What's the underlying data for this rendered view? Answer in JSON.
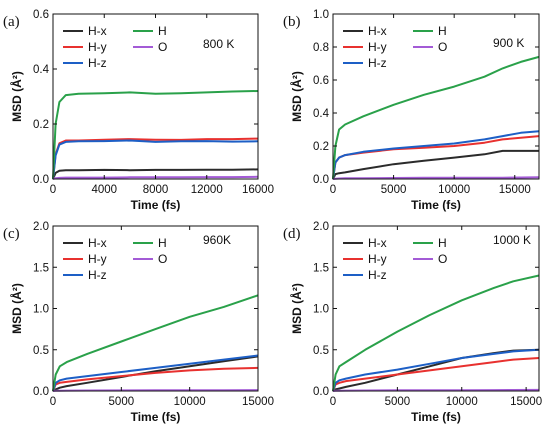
{
  "figure": {
    "panels": [
      "(a)",
      "(b)",
      "(c)",
      "(d)"
    ]
  },
  "chart_data": [
    {
      "type": "line",
      "panel_label": "(a)",
      "temperature_label": "800 K",
      "xlabel": "Time (fs)",
      "ylabel": "MSD (Å²)",
      "xlim": [
        0,
        16000
      ],
      "ylim": [
        0,
        0.6
      ],
      "xticks": [
        0,
        4000,
        8000,
        12000,
        16000
      ],
      "yticks": [
        0.0,
        0.2,
        0.4,
        0.6
      ],
      "ytick_labels": [
        "0.0",
        "0.2",
        "0.4",
        "0.6"
      ],
      "legend_position": "top-left",
      "x": [
        0,
        200,
        500,
        1000,
        2000,
        4000,
        6000,
        8000,
        10000,
        12000,
        14000,
        16000
      ],
      "series": [
        {
          "name": "H-x",
          "color": "#2b2b2b",
          "values": [
            0.0,
            0.022,
            0.03,
            0.032,
            0.032,
            0.033,
            0.032,
            0.033,
            0.033,
            0.034,
            0.034,
            0.035
          ]
        },
        {
          "name": "H-y",
          "color": "#e8312f",
          "values": [
            0.0,
            0.09,
            0.13,
            0.14,
            0.14,
            0.143,
            0.145,
            0.143,
            0.142,
            0.145,
            0.145,
            0.147
          ]
        },
        {
          "name": "H-z",
          "color": "#1d5fc6",
          "values": [
            0.0,
            0.085,
            0.125,
            0.135,
            0.137,
            0.138,
            0.14,
            0.135,
            0.137,
            0.138,
            0.136,
            0.137
          ]
        },
        {
          "name": "H",
          "color": "#2aa14a",
          "values": [
            0.0,
            0.2,
            0.28,
            0.305,
            0.31,
            0.312,
            0.315,
            0.31,
            0.312,
            0.315,
            0.318,
            0.32
          ]
        },
        {
          "name": "O",
          "color": "#a35bd6",
          "values": [
            0.0,
            0.003,
            0.004,
            0.005,
            0.005,
            0.005,
            0.006,
            0.006,
            0.006,
            0.007,
            0.007,
            0.008
          ]
        }
      ]
    },
    {
      "type": "line",
      "panel_label": "(b)",
      "temperature_label": "900 K",
      "xlabel": "Time (fs)",
      "ylabel": "MSD (Å²)",
      "xlim": [
        0,
        17000
      ],
      "ylim": [
        0,
        1.0
      ],
      "xticks": [
        0,
        5000,
        10000,
        15000
      ],
      "yticks": [
        0.0,
        0.2,
        0.4,
        0.6,
        0.8,
        1.0
      ],
      "ytick_labels": [
        "0.0",
        "0.2",
        "0.4",
        "0.6",
        "0.8",
        "1.0"
      ],
      "legend_position": "top-left",
      "x": [
        0,
        200,
        500,
        1000,
        2500,
        5000,
        7500,
        10000,
        12500,
        14000,
        15500,
        17000
      ],
      "series": [
        {
          "name": "H-x",
          "color": "#2b2b2b",
          "values": [
            0.0,
            0.03,
            0.035,
            0.04,
            0.06,
            0.09,
            0.11,
            0.13,
            0.15,
            0.17,
            0.17,
            0.17
          ]
        },
        {
          "name": "H-y",
          "color": "#e8312f",
          "values": [
            0.0,
            0.1,
            0.13,
            0.145,
            0.16,
            0.18,
            0.19,
            0.2,
            0.22,
            0.24,
            0.25,
            0.26
          ]
        },
        {
          "name": "H-z",
          "color": "#1d5fc6",
          "values": [
            0.0,
            0.1,
            0.13,
            0.145,
            0.165,
            0.185,
            0.2,
            0.215,
            0.24,
            0.26,
            0.28,
            0.29
          ]
        },
        {
          "name": "H",
          "color": "#2aa14a",
          "values": [
            0.0,
            0.2,
            0.3,
            0.33,
            0.38,
            0.45,
            0.51,
            0.56,
            0.62,
            0.67,
            0.71,
            0.74
          ]
        },
        {
          "name": "O",
          "color": "#a35bd6",
          "values": [
            0.0,
            0.002,
            0.003,
            0.004,
            0.005,
            0.006,
            0.007,
            0.007,
            0.008,
            0.008,
            0.009,
            0.01
          ]
        }
      ]
    },
    {
      "type": "line",
      "panel_label": "(c)",
      "temperature_label": "960K",
      "xlabel": "Time (fs)",
      "ylabel": "MSD (Å²)",
      "xlim": [
        0,
        15000
      ],
      "ylim": [
        0,
        2.0
      ],
      "xticks": [
        0,
        5000,
        10000,
        15000
      ],
      "yticks": [
        0.0,
        0.5,
        1.0,
        1.5,
        2.0
      ],
      "ytick_labels": [
        "0.0",
        "0.5",
        "1.0",
        "1.5",
        "2.0"
      ],
      "legend_position": "top-left",
      "x": [
        0,
        200,
        500,
        1000,
        2500,
        5000,
        7500,
        10000,
        12500,
        15000
      ],
      "series": [
        {
          "name": "H-x",
          "color": "#2b2b2b",
          "values": [
            0.0,
            0.02,
            0.04,
            0.06,
            0.1,
            0.17,
            0.24,
            0.3,
            0.36,
            0.42
          ]
        },
        {
          "name": "H-y",
          "color": "#e8312f",
          "values": [
            0.0,
            0.08,
            0.1,
            0.11,
            0.14,
            0.18,
            0.22,
            0.25,
            0.27,
            0.28
          ]
        },
        {
          "name": "H-z",
          "color": "#1d5fc6",
          "values": [
            0.0,
            0.1,
            0.13,
            0.15,
            0.18,
            0.23,
            0.28,
            0.33,
            0.38,
            0.43
          ]
        },
        {
          "name": "H",
          "color": "#2aa14a",
          "values": [
            0.0,
            0.2,
            0.3,
            0.35,
            0.45,
            0.6,
            0.75,
            0.9,
            1.02,
            1.16
          ]
        },
        {
          "name": "O",
          "color": "#a35bd6",
          "values": [
            0.0,
            0.003,
            0.004,
            0.005,
            0.006,
            0.007,
            0.008,
            0.009,
            0.01,
            0.011
          ]
        }
      ]
    },
    {
      "type": "line",
      "panel_label": "(d)",
      "temperature_label": "1000 K",
      "xlabel": "Time (fs)",
      "ylabel": "MSD (Å²)",
      "xlim": [
        0,
        16000
      ],
      "ylim": [
        0,
        2.0
      ],
      "xticks": [
        0,
        5000,
        10000,
        15000
      ],
      "yticks": [
        0.0,
        0.5,
        1.0,
        1.5,
        2.0
      ],
      "ytick_labels": [
        "0.0",
        "0.5",
        "1.0",
        "1.5",
        "2.0"
      ],
      "legend_position": "top-left",
      "x": [
        0,
        200,
        500,
        1000,
        2500,
        5000,
        7500,
        10000,
        12500,
        14000,
        16000
      ],
      "series": [
        {
          "name": "H-x",
          "color": "#2b2b2b",
          "values": [
            0.0,
            0.02,
            0.03,
            0.05,
            0.1,
            0.2,
            0.3,
            0.4,
            0.46,
            0.49,
            0.5
          ]
        },
        {
          "name": "H-y",
          "color": "#e8312f",
          "values": [
            0.0,
            0.08,
            0.1,
            0.12,
            0.15,
            0.2,
            0.25,
            0.3,
            0.35,
            0.38,
            0.4
          ]
        },
        {
          "name": "H-z",
          "color": "#1d5fc6",
          "values": [
            0.0,
            0.1,
            0.13,
            0.15,
            0.2,
            0.26,
            0.33,
            0.4,
            0.45,
            0.48,
            0.5
          ]
        },
        {
          "name": "H",
          "color": "#2aa14a",
          "values": [
            0.0,
            0.2,
            0.3,
            0.35,
            0.5,
            0.72,
            0.92,
            1.1,
            1.25,
            1.33,
            1.4
          ]
        },
        {
          "name": "O",
          "color": "#a35bd6",
          "values": [
            0.0,
            0.003,
            0.004,
            0.005,
            0.006,
            0.008,
            0.009,
            0.01,
            0.011,
            0.012,
            0.013
          ]
        }
      ]
    }
  ]
}
